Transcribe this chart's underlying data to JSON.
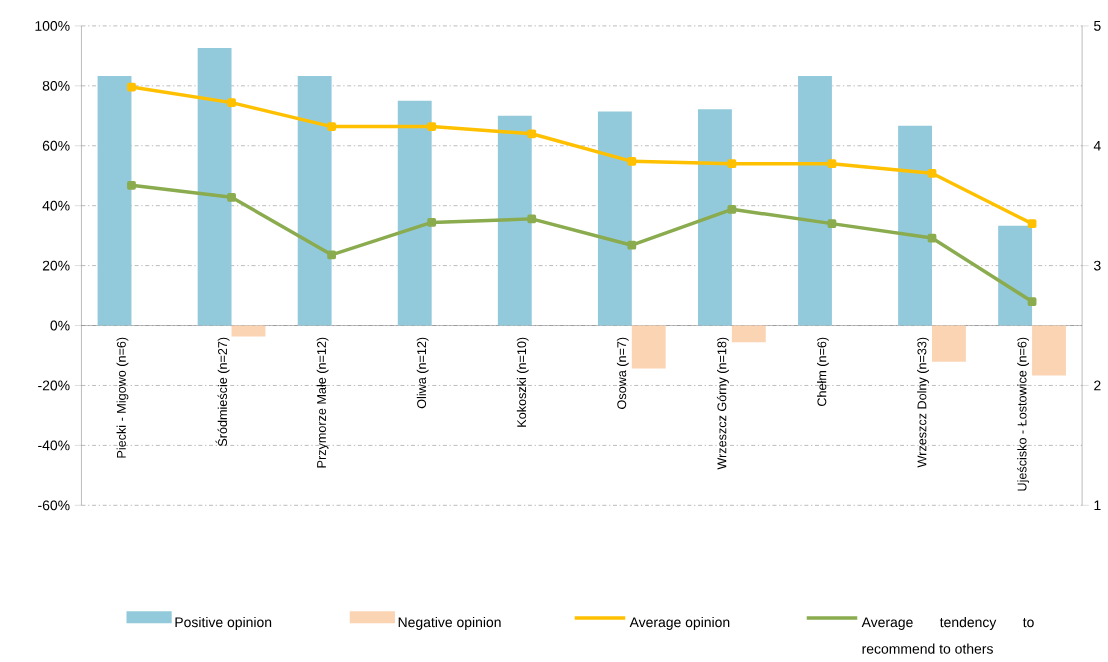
{
  "chart_data": {
    "type": "bar",
    "categories": [
      "Piecki - Migowo (n=6)",
      "Śródmieście (n=27)",
      "Przymorze Małe (n=12)",
      "Oliwa (n=12)",
      "Kokoszki (n=10)",
      "Osowa (n=7)",
      "Wrzeszcz Górny (n=18)",
      "Chełm (n=6)",
      "Wrzeszcz Dolny (n=33)",
      "Ujeścisko - Łostowice (n=6)"
    ],
    "series": [
      {
        "name": "Positive opinion",
        "color": "#93cadb",
        "values": [
          83.3,
          92.6,
          83.3,
          75,
          70,
          71.4,
          72.2,
          83.3,
          66.7,
          33.3
        ]
      },
      {
        "name": "Negative opinion",
        "color": "#fbd4b4",
        "values": [
          null,
          -3.7,
          null,
          null,
          null,
          -14.3,
          -5.6,
          null,
          -12.1,
          -16.7
        ]
      },
      {
        "name": "Average opinion",
        "type": "line",
        "axis": "y2",
        "color": "#ffc000",
        "values": [
          4.49,
          4.36,
          4.16,
          4.16,
          4.1,
          3.87,
          3.85,
          3.85,
          3.77,
          3.35
        ]
      },
      {
        "name": "Average tendency to recommend to others",
        "type": "line",
        "axis": "y2",
        "color": "#8aab4e",
        "values": [
          3.67,
          3.57,
          3.09,
          3.36,
          3.39,
          3.17,
          3.47,
          3.35,
          3.23,
          2.7
        ]
      }
    ],
    "ylim": [
      -60,
      100
    ],
    "yticks": [
      {
        "value": -60,
        "label": "-60%"
      },
      {
        "value": -40,
        "label": "-40%"
      },
      {
        "value": -20,
        "label": "-20%"
      },
      {
        "value": 0,
        "label": "0%"
      },
      {
        "value": 20,
        "label": "20%"
      },
      {
        "value": 40,
        "label": "40%"
      },
      {
        "value": 60,
        "label": "60%"
      },
      {
        "value": 80,
        "label": "80%"
      },
      {
        "value": 100,
        "label": "100%"
      }
    ],
    "y2lim": [
      1,
      5
    ],
    "y2ticks": [
      1,
      2,
      3,
      4,
      5
    ],
    "grid": "y",
    "legend": "bottom",
    "marker": "square"
  }
}
